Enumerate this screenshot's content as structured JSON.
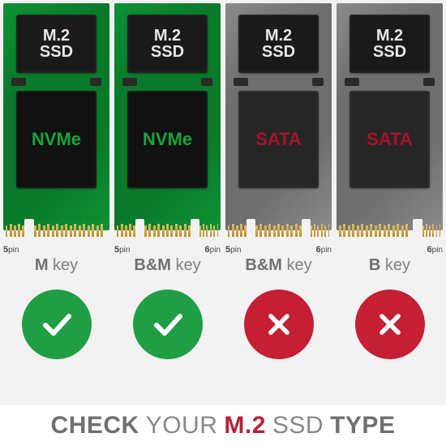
{
  "footer": {
    "w1": "CHECK",
    "w2": "YOUR",
    "w3": "M.2",
    "w4": "SSD",
    "w5": "TYPE",
    "accent_color": "#b4223b"
  },
  "status": {
    "ok_color": "#1f9e45",
    "bad_color": "#c41f33",
    "circle_size": 86
  },
  "ssd_common": {
    "top_label_line1": "M.2",
    "top_label_line2": "SSD",
    "top_chip_bg": "#1a1a1a",
    "top_label_color": "#e8e8e8",
    "top_fontsize": 20,
    "finger_color_top": "#e6c263",
    "finger_color_bottom": "#b88a2e",
    "pin_label_color": "#4a4a4a"
  },
  "cards": [
    {
      "id": "nvme-m",
      "pcb_color": "#0a7a2a",
      "pcb_trace_color": "#0d9235",
      "main_chip_bg": "#111111",
      "interface_label": "NVMe",
      "interface_color": "#17a53a",
      "interface_fontsize": 22,
      "key_bold": "M",
      "key_rest": " key",
      "status": "ok",
      "notches": [
        {
          "from_left_pct": 20,
          "width_pct": 9,
          "left_pins": 5,
          "right_pins": 16,
          "left_label": "5pin",
          "right_label": ""
        }
      ]
    },
    {
      "id": "nvme-bm",
      "pcb_color": "#0a7a2a",
      "pcb_trace_color": "#0d9235",
      "main_chip_bg": "#111111",
      "interface_label": "NVMe",
      "interface_color": "#17a53a",
      "interface_fontsize": 22,
      "key_bold": "B&M",
      "key_rest": " key",
      "status": "ok",
      "notches": [
        {
          "from_left_pct": 20,
          "width_pct": 8,
          "left_pins": 5,
          "right_pins": 0,
          "left_label": "5pin",
          "right_label": ""
        },
        {
          "from_left_pct": 72,
          "width_pct": 8,
          "left_pins": 11,
          "right_pins": 6,
          "left_label": "",
          "right_label": "6pin"
        }
      ]
    },
    {
      "id": "sata-bm",
      "pcb_color": "#6f6f6f",
      "pcb_trace_color": "#8a8a8a",
      "main_chip_bg": "#262626",
      "interface_label": "SATA",
      "interface_color": "#a3142d",
      "interface_fontsize": 22,
      "key_bold": "B&M",
      "key_rest": " key",
      "status": "bad",
      "notches": [
        {
          "from_left_pct": 20,
          "width_pct": 8,
          "left_pins": 5,
          "right_pins": 0,
          "left_label": "5pin",
          "right_label": ""
        },
        {
          "from_left_pct": 72,
          "width_pct": 8,
          "left_pins": 11,
          "right_pins": 6,
          "left_label": "",
          "right_label": "6pin"
        }
      ]
    },
    {
      "id": "sata-b",
      "pcb_color": "#6f6f6f",
      "pcb_trace_color": "#8a8a8a",
      "main_chip_bg": "#262626",
      "interface_label": "SATA",
      "interface_color": "#a3142d",
      "interface_fontsize": 22,
      "key_bold": "B",
      "key_rest": " key",
      "status": "bad",
      "notches": [
        {
          "from_left_pct": 72,
          "width_pct": 9,
          "left_pins": 16,
          "right_pins": 6,
          "left_label": "",
          "right_label": "6pin"
        }
      ]
    }
  ]
}
